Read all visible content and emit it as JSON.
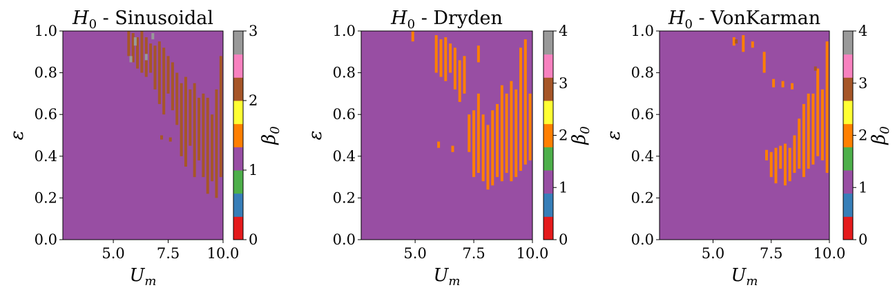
{
  "chart_data": [
    {
      "type": "heatmap",
      "title": "H0 - Sinusoidal",
      "title_main": "H",
      "title_sub": "0",
      "title_rest": " - Sinusoidal",
      "xlabel_main": "U",
      "xlabel_sub": "m",
      "ylabel": "ε",
      "xlim": [
        2.7,
        10.0
      ],
      "ylim": [
        0.0,
        1.0
      ],
      "xticks": [
        "5.0",
        "7.5",
        "10.0"
      ],
      "xtick_values": [
        5.0,
        7.5,
        10.0
      ],
      "yticks": [
        "0.0",
        "0.2",
        "0.4",
        "0.6",
        "0.8",
        "1.0"
      ],
      "ytick_values": [
        0.0,
        0.2,
        0.4,
        0.6,
        0.8,
        1.0
      ],
      "background_value": 1,
      "colorbar": {
        "label_main": "β",
        "label_sub": "0",
        "min": 0,
        "max": 3,
        "ticks": [
          "0",
          "1",
          "2",
          "3"
        ],
        "tick_values": [
          0,
          1,
          2,
          3
        ],
        "colors": [
          "#e41a1c",
          "#377eb8",
          "#4daf4a",
          "#984ea3",
          "#ff7f00",
          "#ffff33",
          "#a65628",
          "#f781bf",
          "#999999"
        ]
      },
      "anomalies": [
        {
          "x": 5.7,
          "y0": 0.88,
          "y1": 1.0,
          "value": 2
        },
        {
          "x": 5.9,
          "y0": 0.85,
          "y1": 0.99,
          "value": 2
        },
        {
          "x": 6.1,
          "y0": 0.82,
          "y1": 0.97,
          "value": 2
        },
        {
          "x": 6.3,
          "y0": 0.8,
          "y1": 1.0,
          "value": 2
        },
        {
          "x": 6.5,
          "y0": 0.78,
          "y1": 0.97,
          "value": 2
        },
        {
          "x": 6.7,
          "y0": 0.8,
          "y1": 0.94,
          "value": 2
        },
        {
          "x": 6.9,
          "y0": 0.72,
          "y1": 0.93,
          "value": 2
        },
        {
          "x": 7.1,
          "y0": 0.65,
          "y1": 0.95,
          "value": 2
        },
        {
          "x": 7.3,
          "y0": 0.6,
          "y1": 0.92,
          "value": 2
        },
        {
          "x": 7.5,
          "y0": 0.7,
          "y1": 0.88,
          "value": 2
        },
        {
          "x": 7.7,
          "y0": 0.62,
          "y1": 0.85,
          "value": 2
        },
        {
          "x": 7.9,
          "y0": 0.55,
          "y1": 0.8,
          "value": 2
        },
        {
          "x": 8.1,
          "y0": 0.4,
          "y1": 0.75,
          "value": 2
        },
        {
          "x": 8.3,
          "y0": 0.35,
          "y1": 0.78,
          "value": 2
        },
        {
          "x": 8.5,
          "y0": 0.45,
          "y1": 0.72,
          "value": 2
        },
        {
          "x": 8.7,
          "y0": 0.3,
          "y1": 0.75,
          "value": 2
        },
        {
          "x": 8.9,
          "y0": 0.38,
          "y1": 0.68,
          "value": 2
        },
        {
          "x": 9.1,
          "y0": 0.3,
          "y1": 0.7,
          "value": 2
        },
        {
          "x": 9.3,
          "y0": 0.22,
          "y1": 0.68,
          "value": 2
        },
        {
          "x": 9.5,
          "y0": 0.28,
          "y1": 0.6,
          "value": 2
        },
        {
          "x": 9.7,
          "y0": 0.2,
          "y1": 0.72,
          "value": 2
        },
        {
          "x": 9.9,
          "y0": 0.3,
          "y1": 0.88,
          "value": 2
        },
        {
          "x": 6.0,
          "y0": 0.93,
          "y1": 0.97,
          "value": 3
        },
        {
          "x": 5.8,
          "y0": 0.85,
          "y1": 0.88,
          "value": 3
        },
        {
          "x": 6.5,
          "y0": 0.86,
          "y1": 0.89,
          "value": 3
        },
        {
          "x": 6.8,
          "y0": 0.96,
          "y1": 0.99,
          "value": 3
        },
        {
          "x": 7.2,
          "y0": 0.48,
          "y1": 0.5,
          "value": 2
        },
        {
          "x": 7.6,
          "y0": 0.47,
          "y1": 0.49,
          "value": 2
        }
      ]
    },
    {
      "type": "heatmap",
      "title": "H0 - Dryden",
      "title_main": "H",
      "title_sub": "0",
      "title_rest": " - Dryden",
      "xlabel_main": "U",
      "xlabel_sub": "m",
      "ylabel": "ε",
      "xlim": [
        2.7,
        10.0
      ],
      "ylim": [
        0.0,
        1.0
      ],
      "xticks": [
        "5.0",
        "7.5",
        "10.0"
      ],
      "xtick_values": [
        5.0,
        7.5,
        10.0
      ],
      "yticks": [
        "0.0",
        "0.2",
        "0.4",
        "0.6",
        "0.8",
        "1.0"
      ],
      "ytick_values": [
        0.0,
        0.2,
        0.4,
        0.6,
        0.8,
        1.0
      ],
      "background_value": 1,
      "colorbar": {
        "label_main": "β",
        "label_sub": "0",
        "min": 0,
        "max": 4,
        "ticks": [
          "0",
          "1",
          "2",
          "3",
          "4"
        ],
        "tick_values": [
          0,
          1,
          2,
          3,
          4
        ],
        "colors": [
          "#e41a1c",
          "#377eb8",
          "#984ea3",
          "#4daf4a",
          "#ff7f00",
          "#ffff33",
          "#a65628",
          "#f781bf",
          "#999999"
        ]
      },
      "anomalies": [
        {
          "x": 4.9,
          "y0": 0.95,
          "y1": 1.0,
          "value": 2
        },
        {
          "x": 5.9,
          "y0": 0.8,
          "y1": 0.98,
          "value": 2
        },
        {
          "x": 6.1,
          "y0": 0.78,
          "y1": 0.96,
          "value": 2
        },
        {
          "x": 6.3,
          "y0": 0.76,
          "y1": 0.97,
          "value": 2
        },
        {
          "x": 6.5,
          "y0": 0.8,
          "y1": 0.94,
          "value": 2
        },
        {
          "x": 6.7,
          "y0": 0.72,
          "y1": 0.92,
          "value": 2
        },
        {
          "x": 6.9,
          "y0": 0.66,
          "y1": 0.86,
          "value": 2
        },
        {
          "x": 7.1,
          "y0": 0.7,
          "y1": 0.88,
          "value": 2
        },
        {
          "x": 7.3,
          "y0": 0.42,
          "y1": 0.6,
          "value": 2
        },
        {
          "x": 7.5,
          "y0": 0.3,
          "y1": 0.62,
          "value": 2
        },
        {
          "x": 7.7,
          "y0": 0.32,
          "y1": 0.7,
          "value": 2
        },
        {
          "x": 7.9,
          "y0": 0.28,
          "y1": 0.6,
          "value": 2
        },
        {
          "x": 8.1,
          "y0": 0.24,
          "y1": 0.55,
          "value": 2
        },
        {
          "x": 8.3,
          "y0": 0.26,
          "y1": 0.62,
          "value": 2
        },
        {
          "x": 8.5,
          "y0": 0.3,
          "y1": 0.65,
          "value": 2
        },
        {
          "x": 8.7,
          "y0": 0.28,
          "y1": 0.74,
          "value": 2
        },
        {
          "x": 8.9,
          "y0": 0.32,
          "y1": 0.7,
          "value": 2
        },
        {
          "x": 9.1,
          "y0": 0.28,
          "y1": 0.76,
          "value": 2
        },
        {
          "x": 9.3,
          "y0": 0.3,
          "y1": 0.72,
          "value": 2
        },
        {
          "x": 9.5,
          "y0": 0.33,
          "y1": 0.92,
          "value": 2
        },
        {
          "x": 9.7,
          "y0": 0.36,
          "y1": 0.96,
          "value": 2
        },
        {
          "x": 9.9,
          "y0": 0.38,
          "y1": 0.7,
          "value": 2
        },
        {
          "x": 7.7,
          "y0": 0.85,
          "y1": 0.93,
          "value": 2
        },
        {
          "x": 6.0,
          "y0": 0.44,
          "y1": 0.47,
          "value": 2
        },
        {
          "x": 6.6,
          "y0": 0.42,
          "y1": 0.45,
          "value": 2
        }
      ]
    },
    {
      "type": "heatmap",
      "title": "H0 - VonKarman",
      "title_main": "H",
      "title_sub": "0",
      "title_rest": " - VonKarman",
      "xlabel_main": "U",
      "xlabel_sub": "m",
      "ylabel": "ε",
      "xlim": [
        2.7,
        10.0
      ],
      "ylim": [
        0.0,
        1.0
      ],
      "xticks": [
        "5.0",
        "7.5",
        "10.0"
      ],
      "xtick_values": [
        5.0,
        7.5,
        10.0
      ],
      "yticks": [
        "0.0",
        "0.2",
        "0.4",
        "0.6",
        "0.8",
        "1.0"
      ],
      "ytick_values": [
        0.0,
        0.2,
        0.4,
        0.6,
        0.8,
        1.0
      ],
      "background_value": 1,
      "colorbar": {
        "label_main": "β",
        "label_sub": "0",
        "min": 0,
        "max": 4,
        "ticks": [
          "0",
          "1",
          "2",
          "3",
          "4"
        ],
        "tick_values": [
          0,
          1,
          2,
          3,
          4
        ],
        "colors": [
          "#e41a1c",
          "#377eb8",
          "#984ea3",
          "#4daf4a",
          "#ff7f00",
          "#ffff33",
          "#a65628",
          "#f781bf",
          "#999999"
        ]
      },
      "anomalies": [
        {
          "x": 5.9,
          "y0": 0.93,
          "y1": 0.97,
          "value": 2
        },
        {
          "x": 6.3,
          "y0": 0.9,
          "y1": 0.98,
          "value": 2
        },
        {
          "x": 6.7,
          "y0": 0.92,
          "y1": 0.95,
          "value": 2
        },
        {
          "x": 7.2,
          "y0": 0.8,
          "y1": 0.9,
          "value": 2
        },
        {
          "x": 7.6,
          "y0": 0.73,
          "y1": 0.77,
          "value": 2
        },
        {
          "x": 8.0,
          "y0": 0.73,
          "y1": 0.76,
          "value": 2
        },
        {
          "x": 8.4,
          "y0": 0.72,
          "y1": 0.75,
          "value": 2
        },
        {
          "x": 7.3,
          "y0": 0.38,
          "y1": 0.43,
          "value": 2
        },
        {
          "x": 7.5,
          "y0": 0.3,
          "y1": 0.42,
          "value": 2
        },
        {
          "x": 7.7,
          "y0": 0.27,
          "y1": 0.44,
          "value": 2
        },
        {
          "x": 7.9,
          "y0": 0.34,
          "y1": 0.45,
          "value": 2
        },
        {
          "x": 8.1,
          "y0": 0.26,
          "y1": 0.46,
          "value": 2
        },
        {
          "x": 8.3,
          "y0": 0.28,
          "y1": 0.44,
          "value": 2
        },
        {
          "x": 8.5,
          "y0": 0.32,
          "y1": 0.5,
          "value": 2
        },
        {
          "x": 8.7,
          "y0": 0.34,
          "y1": 0.58,
          "value": 2
        },
        {
          "x": 8.9,
          "y0": 0.3,
          "y1": 0.65,
          "value": 2
        },
        {
          "x": 9.1,
          "y0": 0.34,
          "y1": 0.7,
          "value": 2
        },
        {
          "x": 9.3,
          "y0": 0.36,
          "y1": 0.7,
          "value": 2
        },
        {
          "x": 9.5,
          "y0": 0.4,
          "y1": 0.82,
          "value": 2
        },
        {
          "x": 9.7,
          "y0": 0.38,
          "y1": 0.72,
          "value": 2
        },
        {
          "x": 9.9,
          "y0": 0.32,
          "y1": 0.95,
          "value": 2
        },
        {
          "x": 6.0,
          "y0": 0.94,
          "y1": 0.96,
          "value": 3
        },
        {
          "x": 9.4,
          "y0": 0.81,
          "y1": 0.83,
          "value": 3
        }
      ]
    }
  ]
}
